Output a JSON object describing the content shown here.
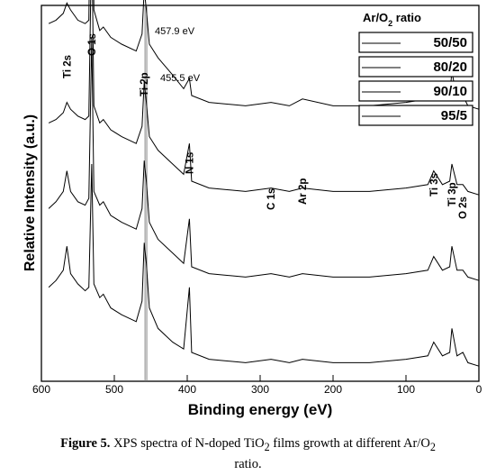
{
  "chart_data": {
    "type": "line",
    "xlabel": "Binding energy (eV)",
    "ylabel": "Relative Intensity (a.u.)",
    "xlim": [
      600,
      0
    ],
    "x_reversed": true,
    "x_ticks": [
      600,
      500,
      400,
      300,
      200,
      100,
      0
    ],
    "y_ticks_shown": false,
    "legend": {
      "title_parts": [
        "Ar/O",
        "2",
        " ratio"
      ],
      "placement": "top-right",
      "entries": [
        "50/50",
        "80/20",
        "90/10",
        "95/5"
      ]
    },
    "reference_lines": [
      {
        "x": 457.9,
        "label": "457.9 eV"
      },
      {
        "x": 455.5,
        "label": "455.5 eV"
      }
    ],
    "peak_labels": [
      {
        "label": "Ti 2s",
        "x": 565
      },
      {
        "label": "O 1s",
        "x": 531
      },
      {
        "label": "Ti 2p",
        "x": 459
      },
      {
        "label": "N 1s",
        "x": 397
      },
      {
        "label": "C 1s",
        "x": 285
      },
      {
        "label": "Ar 2p",
        "x": 242
      },
      {
        "label": "Ti 3s",
        "x": 62
      },
      {
        "label": "Ti 3p",
        "x": 37
      },
      {
        "label": "O 2s",
        "x": 22
      }
    ],
    "series": [
      {
        "name": "50/50",
        "offset": 0.75,
        "points": [
          [
            590,
            0.26
          ],
          [
            580,
            0.27
          ],
          [
            570,
            0.29
          ],
          [
            565,
            0.32
          ],
          [
            560,
            0.3
          ],
          [
            550,
            0.27
          ],
          [
            540,
            0.26
          ],
          [
            535,
            0.27
          ],
          [
            531,
            0.98
          ],
          [
            528,
            0.3
          ],
          [
            520,
            0.24
          ],
          [
            515,
            0.25
          ],
          [
            505,
            0.22
          ],
          [
            490,
            0.2
          ],
          [
            470,
            0.18
          ],
          [
            462,
            0.23
          ],
          [
            459,
            0.36
          ],
          [
            456,
            0.3
          ],
          [
            452,
            0.2
          ],
          [
            440,
            0.16
          ],
          [
            420,
            0.11
          ],
          [
            405,
            0.07
          ],
          [
            397,
            0.1
          ],
          [
            394,
            0.05
          ],
          [
            370,
            0.03
          ],
          [
            320,
            0.02
          ],
          [
            285,
            0.03
          ],
          [
            260,
            0.02
          ],
          [
            242,
            0.04
          ],
          [
            200,
            0.02
          ],
          [
            150,
            0.02
          ],
          [
            100,
            0.03
          ],
          [
            70,
            0.04
          ],
          [
            62,
            0.08
          ],
          [
            50,
            0.04
          ],
          [
            40,
            0.05
          ],
          [
            37,
            0.12
          ],
          [
            30,
            0.04
          ],
          [
            22,
            0.05
          ],
          [
            15,
            0.02
          ],
          [
            0,
            0.01
          ]
        ]
      },
      {
        "name": "80/20",
        "offset": 0.5,
        "points": [
          [
            590,
            0.22
          ],
          [
            580,
            0.23
          ],
          [
            570,
            0.25
          ],
          [
            565,
            0.28
          ],
          [
            560,
            0.26
          ],
          [
            550,
            0.24
          ],
          [
            540,
            0.23
          ],
          [
            535,
            0.24
          ],
          [
            531,
            0.78
          ],
          [
            528,
            0.27
          ],
          [
            520,
            0.22
          ],
          [
            515,
            0.23
          ],
          [
            505,
            0.2
          ],
          [
            490,
            0.18
          ],
          [
            470,
            0.16
          ],
          [
            462,
            0.21
          ],
          [
            459,
            0.34
          ],
          [
            456,
            0.28
          ],
          [
            452,
            0.18
          ],
          [
            440,
            0.14
          ],
          [
            420,
            0.1
          ],
          [
            405,
            0.07
          ],
          [
            397,
            0.16
          ],
          [
            394,
            0.05
          ],
          [
            370,
            0.03
          ],
          [
            320,
            0.02
          ],
          [
            285,
            0.03
          ],
          [
            260,
            0.02
          ],
          [
            242,
            0.03
          ],
          [
            200,
            0.02
          ],
          [
            150,
            0.02
          ],
          [
            100,
            0.03
          ],
          [
            70,
            0.04
          ],
          [
            62,
            0.08
          ],
          [
            50,
            0.04
          ],
          [
            40,
            0.05
          ],
          [
            37,
            0.1
          ],
          [
            30,
            0.04
          ],
          [
            22,
            0.04
          ],
          [
            15,
            0.02
          ],
          [
            0,
            0.01
          ]
        ]
      },
      {
        "name": "90/10",
        "offset": 0.25,
        "points": [
          [
            590,
            0.22
          ],
          [
            580,
            0.24
          ],
          [
            570,
            0.27
          ],
          [
            565,
            0.33
          ],
          [
            560,
            0.27
          ],
          [
            550,
            0.24
          ],
          [
            540,
            0.23
          ],
          [
            535,
            0.25
          ],
          [
            531,
            0.72
          ],
          [
            528,
            0.27
          ],
          [
            520,
            0.23
          ],
          [
            515,
            0.24
          ],
          [
            505,
            0.2
          ],
          [
            490,
            0.18
          ],
          [
            470,
            0.16
          ],
          [
            462,
            0.22
          ],
          [
            459,
            0.36
          ],
          [
            456,
            0.3
          ],
          [
            452,
            0.18
          ],
          [
            440,
            0.13
          ],
          [
            420,
            0.09
          ],
          [
            405,
            0.06
          ],
          [
            397,
            0.19
          ],
          [
            394,
            0.05
          ],
          [
            370,
            0.03
          ],
          [
            320,
            0.02
          ],
          [
            285,
            0.03
          ],
          [
            260,
            0.02
          ],
          [
            242,
            0.03
          ],
          [
            200,
            0.02
          ],
          [
            150,
            0.02
          ],
          [
            100,
            0.03
          ],
          [
            70,
            0.04
          ],
          [
            62,
            0.08
          ],
          [
            50,
            0.04
          ],
          [
            40,
            0.05
          ],
          [
            37,
            0.11
          ],
          [
            30,
            0.04
          ],
          [
            22,
            0.04
          ],
          [
            15,
            0.02
          ],
          [
            0,
            0.01
          ]
        ]
      },
      {
        "name": "95/5",
        "offset": 0.0,
        "points": [
          [
            590,
            0.24
          ],
          [
            580,
            0.26
          ],
          [
            570,
            0.29
          ],
          [
            565,
            0.36
          ],
          [
            560,
            0.28
          ],
          [
            550,
            0.25
          ],
          [
            540,
            0.23
          ],
          [
            535,
            0.24
          ],
          [
            531,
            0.6
          ],
          [
            528,
            0.25
          ],
          [
            520,
            0.21
          ],
          [
            515,
            0.22
          ],
          [
            505,
            0.18
          ],
          [
            490,
            0.16
          ],
          [
            470,
            0.14
          ],
          [
            462,
            0.2
          ],
          [
            459,
            0.37
          ],
          [
            456,
            0.31
          ],
          [
            452,
            0.18
          ],
          [
            440,
            0.12
          ],
          [
            420,
            0.08
          ],
          [
            405,
            0.06
          ],
          [
            397,
            0.24
          ],
          [
            394,
            0.05
          ],
          [
            370,
            0.03
          ],
          [
            320,
            0.02
          ],
          [
            285,
            0.03
          ],
          [
            260,
            0.02
          ],
          [
            242,
            0.03
          ],
          [
            200,
            0.02
          ],
          [
            150,
            0.02
          ],
          [
            100,
            0.03
          ],
          [
            70,
            0.04
          ],
          [
            62,
            0.08
          ],
          [
            50,
            0.04
          ],
          [
            40,
            0.05
          ],
          [
            37,
            0.12
          ],
          [
            30,
            0.04
          ],
          [
            22,
            0.05
          ],
          [
            15,
            0.02
          ],
          [
            0,
            0.01
          ]
        ]
      }
    ]
  },
  "caption": {
    "label": "Figure 5.",
    "text_before_sub": " XPS spectra of N-doped TiO",
    "sub": "2",
    "text_after_sub": " films growth at different Ar/O",
    "sub2": "2",
    "text_end": " ratio."
  }
}
